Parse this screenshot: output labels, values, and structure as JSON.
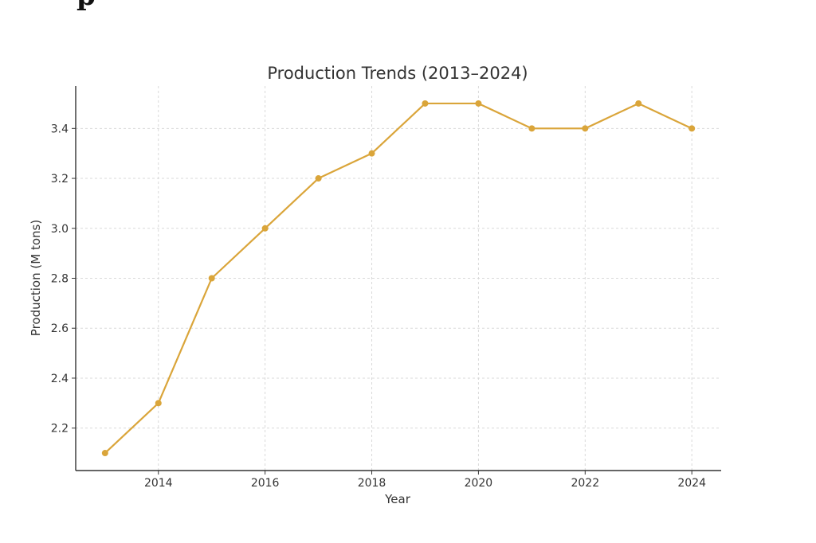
{
  "page": {
    "top_fragment": "p"
  },
  "chart_data": {
    "type": "line",
    "title": "Production Trends (2013–2024)",
    "xlabel": "Year",
    "ylabel": "Production (M tons)",
    "x": [
      2013,
      2014,
      2015,
      2016,
      2017,
      2018,
      2019,
      2020,
      2021,
      2022,
      2023,
      2024
    ],
    "series": [
      {
        "values": [
          2.1,
          2.3,
          2.8,
          3.0,
          3.2,
          3.3,
          3.5,
          3.5,
          3.4,
          3.4,
          3.5,
          3.4
        ]
      }
    ],
    "xticks": [
      2014,
      2016,
      2018,
      2020,
      2022,
      2024
    ],
    "xtick_labels": [
      "2014",
      "2016",
      "2018",
      "2020",
      "2022",
      "2024"
    ],
    "yticks": [
      2.2,
      2.4,
      2.6,
      2.8,
      3.0,
      3.2,
      3.4
    ],
    "ytick_labels": [
      "2.2",
      "2.4",
      "2.6",
      "2.8",
      "3.0",
      "3.2",
      "3.4"
    ],
    "xlim": [
      2012.45,
      2024.55
    ],
    "ylim": [
      2.03,
      3.57
    ],
    "grid": true,
    "line_color": "#DAA53A",
    "grid_color": "#d9d9d9",
    "axis_color": "#333333"
  }
}
